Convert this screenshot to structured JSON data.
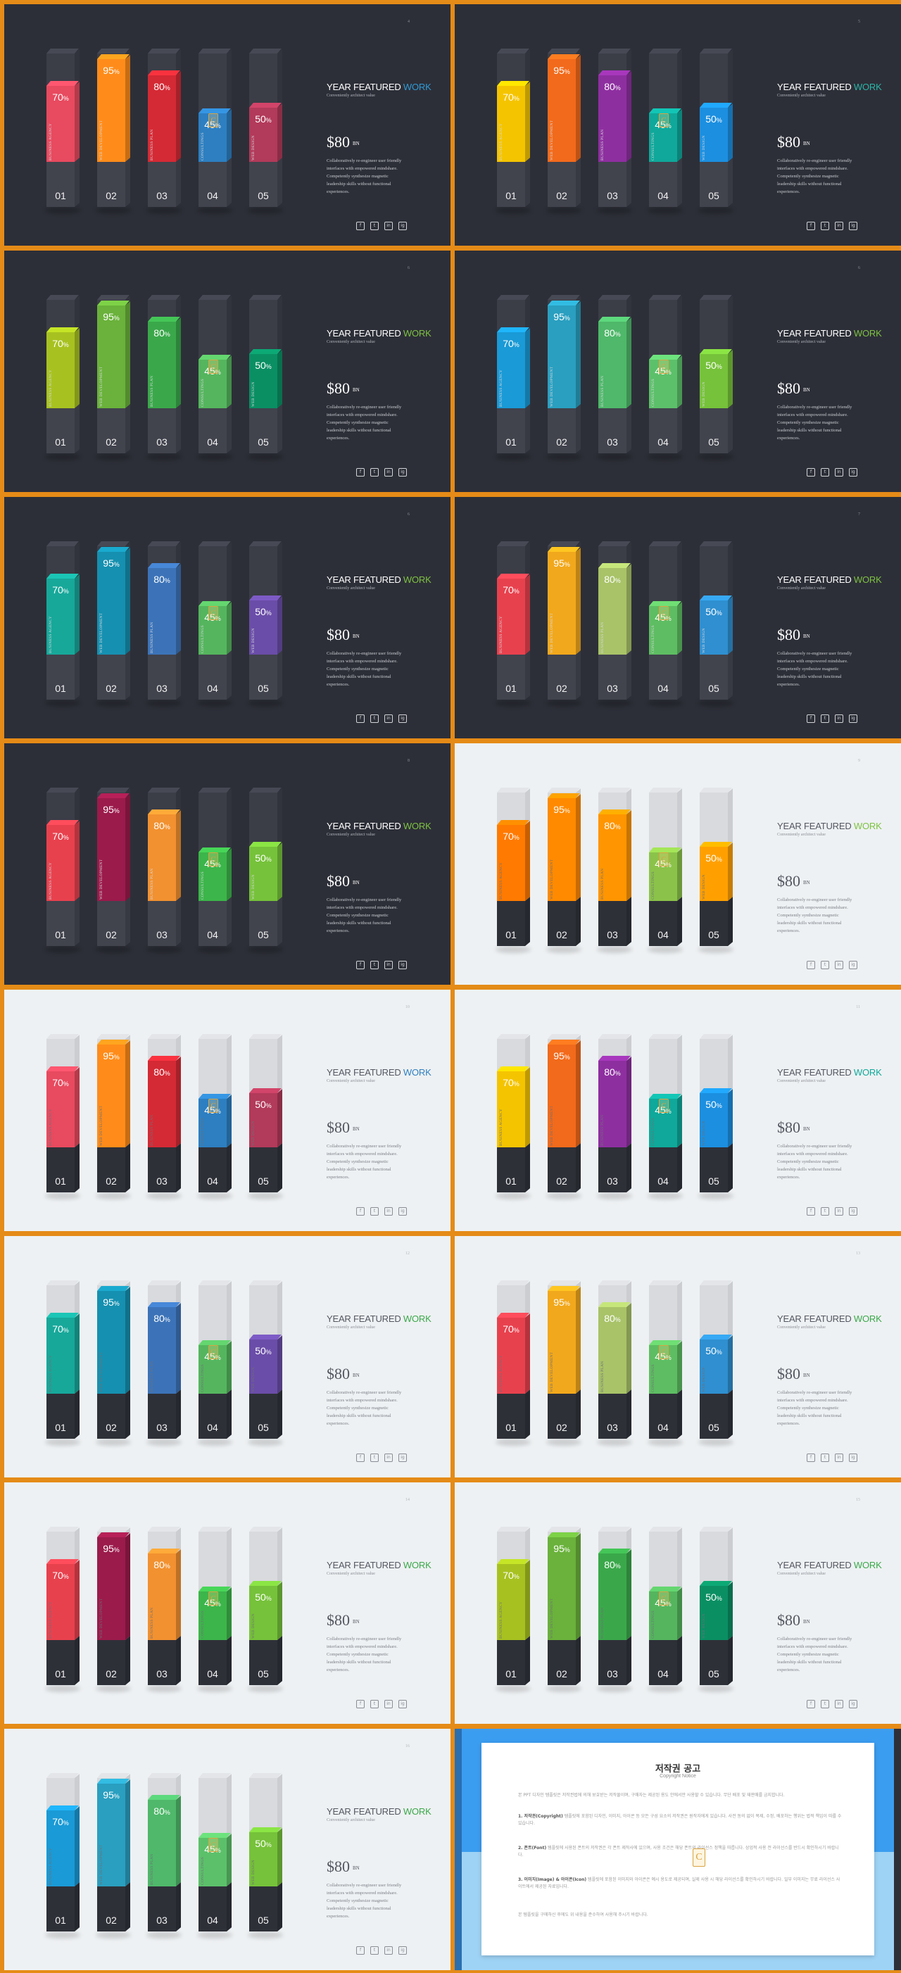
{
  "slides": [
    {
      "page": "4",
      "theme": "dark",
      "title_white": "YEAR FEATURED ",
      "title_accent": "WORK",
      "accent": "#2f9ad6",
      "colors": [
        "#e84a5f",
        "#ff8c1a",
        "#d42a35",
        "#2d7fc1",
        "#b23a5a"
      ]
    },
    {
      "page": "5",
      "theme": "dark",
      "title_white": "YEAR FEATURED ",
      "title_accent": "WORK",
      "accent": "#2bb5a8",
      "colors": [
        "#f5c400",
        "#f26a1b",
        "#8e2fa0",
        "#0fa89a",
        "#1c8fe0"
      ]
    },
    {
      "page": "6",
      "theme": "dark",
      "title_white": "YEAR FEATURED ",
      "title_accent": "WORK",
      "accent": "#7dc242",
      "colors": [
        "#a7c220",
        "#6ab23b",
        "#3aa84a",
        "#55b55e",
        "#0a8f63"
      ]
    },
    {
      "page": "6",
      "theme": "dark",
      "title_white": "YEAR FEATURED ",
      "title_accent": "WORK",
      "accent": "#7dc242",
      "colors": [
        "#1a9ad6",
        "#2a9fc0",
        "#4fb86a",
        "#5cc06a",
        "#76c23a"
      ]
    },
    {
      "page": "6",
      "theme": "dark",
      "title_white": "YEAR FEATURED ",
      "title_accent": "WORK",
      "accent": "#7dc242",
      "colors": [
        "#17a89a",
        "#1690b0",
        "#3c73b8",
        "#55b55e",
        "#6a4da8"
      ]
    },
    {
      "page": "7",
      "theme": "dark",
      "title_white": "YEAR FEATURED ",
      "title_accent": "WORK",
      "accent": "#7dc242",
      "colors": [
        "#e8414e",
        "#f2a81c",
        "#a8c368",
        "#5ebd62",
        "#2f8fd0"
      ]
    },
    {
      "page": "8",
      "theme": "dark",
      "title_white": "YEAR FEATURED ",
      "title_accent": "WORK",
      "accent": "#7dc242",
      "colors": [
        "#e8414e",
        "#9b1b4b",
        "#f29130",
        "#3cb54a",
        "#76c23a"
      ]
    },
    {
      "page": "9",
      "theme": "light",
      "title_white": "YEAR FEATURED ",
      "title_accent": "WORK",
      "accent": "#7dc242",
      "colors": [
        "#ff7a00",
        "#ff8a00",
        "#ff9500",
        "#8bc34a",
        "#ffa000"
      ]
    },
    {
      "page": "10",
      "theme": "light",
      "title_white": "YEAR FEATURED ",
      "title_accent": "WORK",
      "accent": "#2f7fc1",
      "colors": [
        "#e84a5f",
        "#ff8c1a",
        "#d42a35",
        "#2d7fc1",
        "#b23a5a"
      ]
    },
    {
      "page": "11",
      "theme": "light",
      "title_white": "YEAR FEATURED ",
      "title_accent": "WORK",
      "accent": "#0fa89a",
      "colors": [
        "#f5c400",
        "#f26a1b",
        "#8e2fa0",
        "#0fa89a",
        "#1c8fe0"
      ]
    },
    {
      "page": "12",
      "theme": "light",
      "title_white": "YEAR FEATURED ",
      "title_accent": "WORK",
      "accent": "#3aa84a",
      "colors": [
        "#17a89a",
        "#1690b0",
        "#3c73b8",
        "#55b55e",
        "#6a4da8"
      ]
    },
    {
      "page": "13",
      "theme": "light",
      "title_white": "YEAR FEATURED ",
      "title_accent": "WORK",
      "accent": "#3aa84a",
      "colors": [
        "#e8414e",
        "#f2a81c",
        "#a8c368",
        "#5ebd62",
        "#2f8fd0"
      ]
    },
    {
      "page": "14",
      "theme": "light",
      "title_white": "YEAR FEATURED ",
      "title_accent": "WORK",
      "accent": "#3aa84a",
      "colors": [
        "#e8414e",
        "#9b1b4b",
        "#f29130",
        "#3cb54a",
        "#76c23a"
      ]
    },
    {
      "page": "15",
      "theme": "light",
      "title_white": "YEAR FEATURED ",
      "title_accent": "WORK",
      "accent": "#3aa84a",
      "colors": [
        "#a7c220",
        "#6ab23b",
        "#3aa84a",
        "#55b55e",
        "#0a8f63"
      ]
    },
    {
      "page": "16",
      "theme": "light",
      "title_white": "YEAR FEATURED ",
      "title_accent": "WORK",
      "accent": "#3aa84a",
      "colors": [
        "#1a9ad6",
        "#2a9fc0",
        "#4fb86a",
        "#5cc06a",
        "#76c23a"
      ]
    }
  ],
  "common": {
    "subtitle": "Conveniently architect value",
    "price": "$80",
    "price_unit": "BN",
    "body": "Collaboratively re-engineer user friendly interfaces with empowered mindshare. Competently synthesize magnetic leadership skills without functional experiences.",
    "values": [
      70,
      95,
      80,
      45,
      50
    ],
    "numbers": [
      "01",
      "02",
      "03",
      "04",
      "05"
    ],
    "labels": [
      "BUSINESS AGENCY",
      "WEB DEVELOPMENT",
      "BUSINESS PLAN",
      "CONSULTINGS",
      "WEB DESIGN"
    ],
    "pct_suffix": "%",
    "social": [
      "f",
      "t",
      "in",
      "ig"
    ],
    "mark": "C"
  },
  "copyright": {
    "title": "저작권 공고",
    "subtitle": "Copyright Notice",
    "p1": "본 PPT 디자인 템플릿은 저작권법에 의해 보호받는 저작물이며, 구매자는 제공된 용도 안에서만 사용할 수 있습니다. 무단 배포 및 재판매를 금지합니다.",
    "p2_head": "1. 저작권(Copyright)",
    "p2": "템플릿에 포함된 디자인, 이미지, 아이콘 등 모든 구성 요소의 저작권은 원작자에게 있습니다. 사전 동의 없이 복제, 수정, 배포하는 행위는 법적 책임이 따를 수 있습니다.",
    "p3_head": "2. 폰트(Font)",
    "p3": "템플릿에 사용된 폰트의 저작권은 각 폰트 제작사에 있으며, 사용 조건은 해당 폰트의 라이선스 정책을 따릅니다. 상업적 사용 전 라이선스를 반드시 확인하시기 바랍니다.",
    "p4_head": "3. 이미지(Image) & 아이콘(Icon)",
    "p4": "템플릿에 포함된 이미지와 아이콘은 예시 용도로 제공되며, 실제 사용 시 해당 라이선스를 확인하시기 바랍니다. 일부 이미지는 무료 라이선스 사이트에서 제공된 자료입니다.",
    "p5": "본 템플릿을 구매하신 후에도 위 내용을 준수하여 사용해 주시기 바랍니다."
  }
}
